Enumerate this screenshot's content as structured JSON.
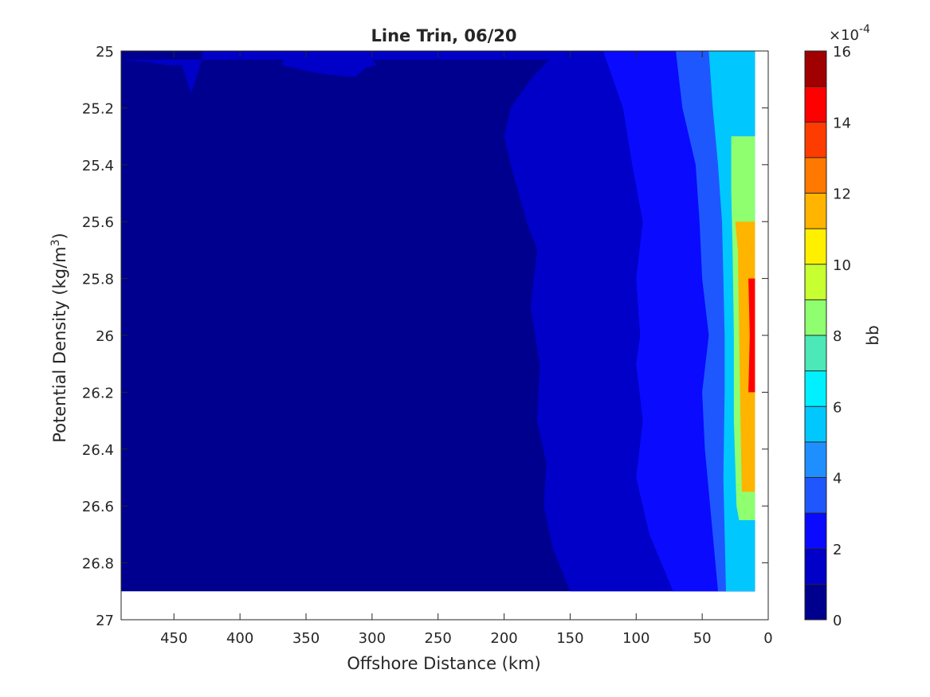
{
  "chart_data": {
    "type": "heatmap",
    "subtype": "filled-contour",
    "title": "Line Trin, 06/20",
    "xlabel": "Offshore Distance (km)",
    "ylabel_main": "Potential Density (kg/m",
    "ylabel_sup": "3",
    "ylabel_close": ")",
    "xlim": [
      490,
      0
    ],
    "ylim": [
      27,
      25
    ],
    "x_reversed": true,
    "y_reversed": true,
    "xticks": [
      450,
      400,
      350,
      300,
      250,
      200,
      150,
      100,
      50,
      0
    ],
    "yticks": [
      25,
      25.2,
      25.4,
      25.6,
      25.8,
      26,
      26.2,
      26.4,
      26.6,
      26.8,
      27
    ],
    "ytick_labels": [
      "25",
      "25.2",
      "25.4",
      "25.6",
      "25.8",
      "26",
      "26.2",
      "26.4",
      "26.6",
      "26.8",
      "27"
    ],
    "data_extent": {
      "x": [
        490,
        10
      ],
      "y": [
        25,
        26.9
      ]
    },
    "colorbar": {
      "label": "bb",
      "multiplier_base": "×10",
      "multiplier_exp": "-4",
      "range": [
        0,
        16
      ],
      "ticks": [
        0,
        2,
        4,
        6,
        8,
        10,
        12,
        14,
        16
      ],
      "levels": [
        0,
        1,
        2,
        3,
        4,
        5,
        6,
        7,
        8,
        9,
        10,
        11,
        12,
        13,
        14,
        15,
        16
      ],
      "colors": [
        "#00008f",
        "#0000c8",
        "#0a0aff",
        "#1f57ff",
        "#1f8fff",
        "#00c8ff",
        "#00f0ff",
        "#4de8b8",
        "#8fff70",
        "#c8ff30",
        "#fff000",
        "#ffb400",
        "#ff7800",
        "#ff3c00",
        "#ff0000",
        "#a00000"
      ]
    },
    "level_contours": [
      {
        "level": 1,
        "boundary": [
          [
            428,
            25
          ],
          [
            430,
            25.05
          ],
          [
            437,
            25.15
          ],
          [
            444,
            25.05
          ],
          [
            456,
            25.05
          ],
          [
            468,
            25.04
          ],
          [
            490,
            25.03
          ]
        ]
      },
      {
        "level": 1,
        "boundary": [
          [
            366,
            25
          ],
          [
            368,
            25.05
          ],
          [
            350,
            25.07
          ],
          [
            338,
            25.08
          ],
          [
            320,
            25.09
          ],
          [
            312,
            25.09
          ],
          [
            305,
            25.06
          ],
          [
            297,
            25.05
          ],
          [
            303,
            25
          ]
        ]
      },
      {
        "level": 1,
        "boundary": [
          [
            190,
            25
          ],
          [
            225,
            25.0
          ],
          [
            255,
            25.0
          ],
          [
            270,
            25.0
          ]
        ]
      },
      {
        "level": 1,
        "boundary": [
          [
            160,
            25
          ],
          [
            180,
            25.1
          ],
          [
            195,
            25.2
          ],
          [
            200,
            25.3
          ],
          [
            195,
            25.4
          ],
          [
            183,
            25.6
          ],
          [
            175,
            25.7
          ],
          [
            180,
            25.9
          ],
          [
            173,
            26.1
          ],
          [
            175,
            26.3
          ],
          [
            168,
            26.45
          ],
          [
            170,
            26.6
          ],
          [
            163,
            26.75
          ],
          [
            150,
            26.9
          ]
        ]
      },
      {
        "level": 2,
        "boundary": [
          [
            125,
            25
          ],
          [
            110,
            25.2
          ],
          [
            103,
            25.4
          ],
          [
            95,
            25.6
          ],
          [
            100,
            25.8
          ],
          [
            97,
            26.0
          ],
          [
            100,
            26.1
          ],
          [
            95,
            26.3
          ],
          [
            100,
            26.5
          ],
          [
            90,
            26.7
          ],
          [
            72,
            26.9
          ]
        ]
      },
      {
        "level": 3,
        "boundary": [
          [
            70,
            25
          ],
          [
            65,
            25.2
          ],
          [
            55,
            25.4
          ],
          [
            52,
            25.6
          ],
          [
            50,
            25.8
          ],
          [
            45,
            26.0
          ],
          [
            50,
            26.2
          ],
          [
            48,
            26.4
          ],
          [
            42,
            26.7
          ],
          [
            38,
            26.9
          ]
        ]
      },
      {
        "level": 5,
        "boundary": [
          [
            45,
            25
          ],
          [
            42,
            25.2
          ],
          [
            38,
            25.4
          ],
          [
            35,
            25.6
          ],
          [
            34,
            25.8
          ],
          [
            33,
            26.0
          ],
          [
            33,
            26.2
          ],
          [
            34,
            26.5
          ],
          [
            32,
            26.9
          ]
        ]
      },
      {
        "level": 8,
        "boundary": [
          [
            28,
            25.3
          ],
          [
            28,
            25.5
          ],
          [
            27,
            25.7
          ],
          [
            26,
            26.0
          ],
          [
            26,
            26.3
          ],
          [
            24,
            26.6
          ],
          [
            22,
            26.65
          ]
        ]
      },
      {
        "level": 11,
        "boundary": [
          [
            25,
            25.6
          ],
          [
            23,
            25.7
          ],
          [
            22,
            26.0
          ],
          [
            21,
            26.3
          ],
          [
            20,
            26.55
          ]
        ]
      },
      {
        "level": 14,
        "boundary": [
          [
            15,
            25.8
          ],
          [
            14,
            26.0
          ],
          [
            15,
            26.2
          ]
        ]
      }
    ]
  }
}
